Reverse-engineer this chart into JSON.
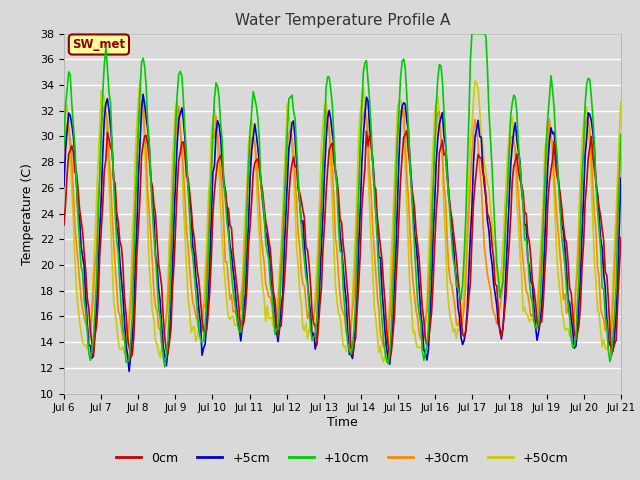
{
  "title": "Water Temperature Profile A",
  "xlabel": "Time",
  "ylabel": "Temperature (C)",
  "ylim": [
    10,
    38
  ],
  "yticks": [
    10,
    12,
    14,
    16,
    18,
    20,
    22,
    24,
    26,
    28,
    30,
    32,
    34,
    36,
    38
  ],
  "xtick_labels": [
    "Jul 6",
    "Jul 7",
    "Jul 8",
    "Jul 9",
    "Jul 10",
    "Jul 11",
    "Jul 12",
    "Jul 13",
    "Jul 14",
    "Jul 15",
    "Jul 16",
    "Jul 17",
    "Jul 18",
    "Jul 19",
    "Jul 20",
    "Jul 21"
  ],
  "line_colors": {
    "0cm": "#cc0000",
    "+5cm": "#0000cc",
    "+10cm": "#00cc00",
    "+30cm": "#ff8800",
    "+50cm": "#cccc00"
  },
  "line_labels": [
    "0cm",
    "+5cm",
    "+10cm",
    "+30cm",
    "+50cm"
  ],
  "legend_colors": [
    "#cc0000",
    "#0000cc",
    "#00cc00",
    "#ff8800",
    "#cccc00"
  ],
  "bg_color": "#d9d9d9",
  "plot_bg_color": "#d9d9d9",
  "grid_color": "#ffffff",
  "annotation_text": "SW_met",
  "annotation_bg": "#ffff99",
  "annotation_border": "#8b0000",
  "figsize": [
    6.4,
    4.8
  ],
  "dpi": 100
}
